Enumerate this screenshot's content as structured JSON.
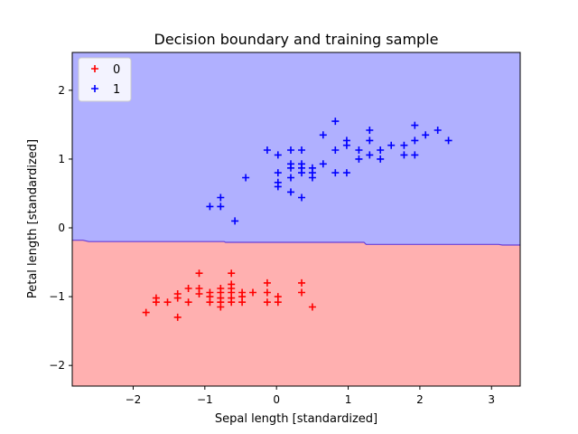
{
  "chart_data": {
    "type": "scatter",
    "title": "Decision boundary and training sample",
    "xlabel": "Sepal length [standardized]",
    "ylabel": "Petal length [standardized]",
    "xlim": [
      -2.85,
      3.4
    ],
    "ylim": [
      -2.3,
      2.55
    ],
    "xticks": [
      -2,
      -1,
      0,
      1,
      2,
      3
    ],
    "yticks": [
      -2,
      -1,
      0,
      1,
      2
    ],
    "xtick_labels": [
      "−2",
      "−1",
      "0",
      "1",
      "2",
      "3"
    ],
    "ytick_labels": [
      "−2",
      "−1",
      "0",
      "1",
      "2"
    ],
    "grid": false,
    "legend_position": "top-left",
    "marker": "+",
    "regions": [
      {
        "class": "0",
        "color": "#ffb0b0",
        "side": "below"
      },
      {
        "class": "1",
        "color": "#b0b0ff",
        "side": "above"
      }
    ],
    "boundary": {
      "color": "#6a3fd8",
      "points": [
        [
          -2.85,
          -0.18
        ],
        [
          -2.7,
          -0.18
        ],
        [
          -2.62,
          -0.2
        ],
        [
          -0.73,
          -0.2
        ],
        [
          -0.71,
          -0.21
        ],
        [
          1.22,
          -0.21
        ],
        [
          1.25,
          -0.24
        ],
        [
          3.1,
          -0.24
        ],
        [
          3.15,
          -0.25
        ],
        [
          3.4,
          -0.25
        ]
      ]
    },
    "series": [
      {
        "name": "0",
        "color": "#ff0000",
        "points": [
          [
            -1.82,
            -1.23
          ],
          [
            -1.68,
            -1.02
          ],
          [
            -1.68,
            -1.08
          ],
          [
            -1.52,
            -1.08
          ],
          [
            -1.38,
            -0.96
          ],
          [
            -1.38,
            -1.02
          ],
          [
            -1.38,
            -1.3
          ],
          [
            -1.23,
            -0.88
          ],
          [
            -1.23,
            -1.08
          ],
          [
            -1.08,
            -0.66
          ],
          [
            -1.08,
            -0.88
          ],
          [
            -1.08,
            -0.96
          ],
          [
            -0.93,
            -0.94
          ],
          [
            -0.93,
            -1.0
          ],
          [
            -0.93,
            -1.08
          ],
          [
            -0.78,
            -0.88
          ],
          [
            -0.78,
            -0.94
          ],
          [
            -0.78,
            -1.02
          ],
          [
            -0.78,
            -1.08
          ],
          [
            -0.78,
            -1.15
          ],
          [
            -0.63,
            -0.66
          ],
          [
            -0.63,
            -0.82
          ],
          [
            -0.63,
            -0.88
          ],
          [
            -0.63,
            -0.94
          ],
          [
            -0.63,
            -1.02
          ],
          [
            -0.63,
            -1.08
          ],
          [
            -0.48,
            -0.94
          ],
          [
            -0.48,
            -1.0
          ],
          [
            -0.48,
            -1.08
          ],
          [
            -0.33,
            -0.94
          ],
          [
            -0.13,
            -0.8
          ],
          [
            -0.13,
            -0.94
          ],
          [
            -0.13,
            -1.08
          ],
          [
            0.02,
            -1.0
          ],
          [
            0.02,
            -1.08
          ],
          [
            0.35,
            -0.8
          ],
          [
            0.35,
            -0.94
          ],
          [
            0.5,
            -1.15
          ]
        ]
      },
      {
        "name": "1",
        "color": "#0000ff",
        "points": [
          [
            -0.93,
            0.31
          ],
          [
            -0.78,
            0.31
          ],
          [
            -0.78,
            0.44
          ],
          [
            -0.58,
            0.1
          ],
          [
            -0.43,
            0.73
          ],
          [
            -0.13,
            1.13
          ],
          [
            0.02,
            0.6
          ],
          [
            0.02,
            0.66
          ],
          [
            0.02,
            0.8
          ],
          [
            0.02,
            1.06
          ],
          [
            0.2,
            0.52
          ],
          [
            0.2,
            0.73
          ],
          [
            0.2,
            0.87
          ],
          [
            0.2,
            0.93
          ],
          [
            0.2,
            1.13
          ],
          [
            0.35,
            0.44
          ],
          [
            0.35,
            0.8
          ],
          [
            0.35,
            0.87
          ],
          [
            0.35,
            0.93
          ],
          [
            0.35,
            1.13
          ],
          [
            0.5,
            0.73
          ],
          [
            0.5,
            0.8
          ],
          [
            0.5,
            0.87
          ],
          [
            0.65,
            0.93
          ],
          [
            0.65,
            1.35
          ],
          [
            0.82,
            0.8
          ],
          [
            0.82,
            1.13
          ],
          [
            0.82,
            1.55
          ],
          [
            0.98,
            0.8
          ],
          [
            0.98,
            1.2
          ],
          [
            0.98,
            1.27
          ],
          [
            1.15,
            1.0
          ],
          [
            1.15,
            1.13
          ],
          [
            1.3,
            1.06
          ],
          [
            1.3,
            1.27
          ],
          [
            1.3,
            1.42
          ],
          [
            1.45,
            1.0
          ],
          [
            1.45,
            1.13
          ],
          [
            1.6,
            1.2
          ],
          [
            1.78,
            1.06
          ],
          [
            1.78,
            1.2
          ],
          [
            1.93,
            1.06
          ],
          [
            1.93,
            1.27
          ],
          [
            1.93,
            1.49
          ],
          [
            2.08,
            1.35
          ],
          [
            2.25,
            1.42
          ],
          [
            2.4,
            1.27
          ]
        ]
      }
    ]
  }
}
